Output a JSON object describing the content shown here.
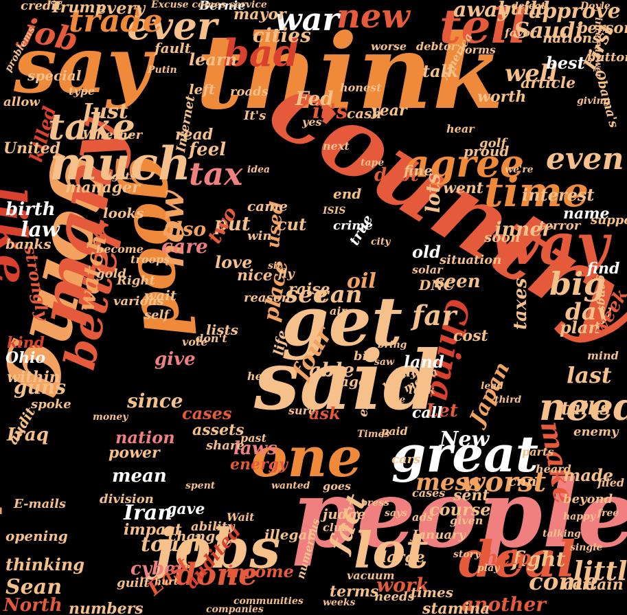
{
  "palette": {
    "background": "#000000",
    "cream": "#f6c08a",
    "light_orange": "#f3a25f",
    "orange": "#ee8a3a",
    "red_orange": "#e55a3a",
    "red": "#d9412f",
    "pink": "#f08080",
    "white": "#ffffff"
  },
  "words": [
    {
      "text": "think",
      "color": "#ee8a3a"
    },
    {
      "text": "country",
      "color": "#e55a3a"
    },
    {
      "text": "people",
      "color": "#f08080"
    },
    {
      "text": "going",
      "color": "#f3a25f"
    },
    {
      "text": "said",
      "color": "#f6c08a"
    },
    {
      "text": "say",
      "color": "#ee8a3a"
    },
    {
      "text": "many",
      "color": "#e55a3a"
    },
    {
      "text": "get",
      "color": "#f6c08a"
    },
    {
      "text": "good",
      "color": "#ee8a3a"
    },
    {
      "text": "one",
      "color": "#ee8a3a"
    },
    {
      "text": "great",
      "color": "#ffffff"
    },
    {
      "text": "way",
      "color": "#e55a3a"
    },
    {
      "text": "jobs",
      "color": "#f6c08a"
    },
    {
      "text": "lot",
      "color": "#f6c08a"
    },
    {
      "text": "deal",
      "color": "#e55a3a"
    },
    {
      "text": "much",
      "color": "#f6c08a"
    },
    {
      "text": "like",
      "color": "#d9412f"
    },
    {
      "text": "tell",
      "color": "#e55a3a"
    },
    {
      "text": "time",
      "color": "#ee8a3a"
    },
    {
      "text": "agree",
      "color": "#ee8a3a"
    },
    {
      "text": "take",
      "color": "#f6c08a"
    },
    {
      "text": "ever",
      "color": "#f6c08a"
    },
    {
      "text": "bad",
      "color": "#d9412f"
    },
    {
      "text": "new",
      "color": "#e55a3a"
    },
    {
      "text": "war",
      "color": "#ffffff"
    },
    {
      "text": "trade",
      "color": "#ee8a3a"
    },
    {
      "text": "tax",
      "color": "#f08080"
    },
    {
      "text": "need",
      "color": "#f6c08a"
    },
    {
      "text": "better",
      "color": "#e55a3a"
    },
    {
      "text": "taken",
      "color": "#f3a25f"
    },
    {
      "text": "China",
      "color": "#d9412f"
    },
    {
      "text": "now",
      "color": "#f3a25f"
    },
    {
      "text": "see",
      "color": "#f6c08a"
    },
    {
      "text": "can",
      "color": "#f6c08a"
    },
    {
      "text": "big",
      "color": "#f6c08a"
    },
    {
      "text": "done",
      "color": "#e55a3a"
    },
    {
      "text": "mess",
      "color": "#f3a25f"
    },
    {
      "text": "worst",
      "color": "#f3a25f"
    },
    {
      "text": "make",
      "color": "#e55a3a"
    },
    {
      "text": "even",
      "color": "#f6c08a"
    },
    {
      "text": "well",
      "color": "#f6c08a"
    },
    {
      "text": "cities",
      "color": "#f6c08a"
    },
    {
      "text": "it's",
      "color": "#e55a3a"
    },
    {
      "text": "also",
      "color": "#f3a25f"
    },
    {
      "text": "oil",
      "color": "#f3a25f"
    },
    {
      "text": "far",
      "color": "#f6c08a"
    },
    {
      "text": "day",
      "color": "#f6c08a"
    },
    {
      "text": "last",
      "color": "#f6c08a"
    },
    {
      "text": "talks",
      "color": "#f6c08a"
    },
    {
      "text": "little",
      "color": "#f6c08a"
    },
    {
      "text": "come",
      "color": "#f6c08a"
    },
    {
      "text": "fight",
      "color": "#f6c08a"
    },
    {
      "text": "help",
      "color": "#e55a3a"
    },
    {
      "text": "fact",
      "color": "#f6c08a"
    },
    {
      "text": "Iran",
      "color": "#ffffff"
    },
    {
      "text": "mean",
      "color": "#ffffff"
    },
    {
      "text": "New",
      "color": "#ffffff"
    },
    {
      "text": "tough",
      "color": "#f6c08a"
    },
    {
      "text": "cyber",
      "color": "#f08080"
    },
    {
      "text": "Sean",
      "color": "#f6c08a"
    },
    {
      "text": "North",
      "color": "#e55a3a"
    },
    {
      "text": "income",
      "color": "#e55a3a"
    },
    {
      "text": "four",
      "color": "#f3a25f"
    },
    {
      "text": "place",
      "color": "#f3a25f"
    },
    {
      "text": "able",
      "color": "#f6c08a"
    },
    {
      "text": "give",
      "color": "#f08080"
    },
    {
      "text": "laws",
      "color": "#f08080"
    },
    {
      "text": "energy",
      "color": "#e55a3a"
    },
    {
      "text": "nation",
      "color": "#f08080"
    },
    {
      "text": "Japan",
      "color": "#f3a25f"
    },
    {
      "text": "watch",
      "color": "#f3a25f"
    },
    {
      "text": "seen",
      "color": "#f6c08a"
    },
    {
      "text": "inner",
      "color": "#f6c08a"
    },
    {
      "text": "law",
      "color": "#ffffff"
    },
    {
      "text": "Ohio",
      "color": "#ffffff"
    },
    {
      "text": "kind",
      "color": "#d9412f"
    },
    {
      "text": "guns",
      "color": "#f6c08a"
    },
    {
      "text": "Iraq",
      "color": "#f6c08a"
    },
    {
      "text": "care",
      "color": "#f08080"
    },
    {
      "text": "love",
      "color": "#f6c08a"
    },
    {
      "text": "debt",
      "color": "#e55a3a"
    },
    {
      "text": "cut",
      "color": "#f6c08a"
    },
    {
      "text": "lots",
      "color": "#f6c08a"
    },
    {
      "text": "put",
      "color": "#f6c08a"
    },
    {
      "text": "interest",
      "color": "#f6c08a"
    },
    {
      "text": "went",
      "color": "#f6c08a"
    },
    {
      "text": "name",
      "color": "#ffffff"
    },
    {
      "text": "Just",
      "color": "#f6c08a"
    },
    {
      "text": "killed",
      "color": "#d9412f"
    },
    {
      "text": "birth",
      "color": "#ffffff"
    },
    {
      "text": "manager",
      "color": "#f6c08a"
    },
    {
      "text": "approve",
      "color": "#f6c08a"
    },
    {
      "text": "away",
      "color": "#f6c08a"
    },
    {
      "text": "build",
      "color": "#f6c08a"
    },
    {
      "text": "job",
      "color": "#e55a3a"
    },
    {
      "text": "every",
      "color": "#f6c08a"
    },
    {
      "text": "learn",
      "color": "#f6c08a"
    },
    {
      "text": "Fed",
      "color": "#f6c08a"
    },
    {
      "text": "read",
      "color": "#f6c08a"
    },
    {
      "text": "feel",
      "color": "#f6c08a"
    },
    {
      "text": "Trump",
      "color": "#f6c08a"
    },
    {
      "text": "Bernie",
      "color": "#ffffff"
    },
    {
      "text": "mayor",
      "color": "#f6c08a"
    },
    {
      "text": "person",
      "color": "#f6c08a"
    },
    {
      "text": "Saudi",
      "color": "#f6c08a"
    },
    {
      "text": "best",
      "color": "#ffffff"
    },
    {
      "text": "talk",
      "color": "#f6c08a"
    },
    {
      "text": "worth",
      "color": "#f6c08a"
    },
    {
      "text": "First",
      "color": "#f6c08a"
    },
    {
      "text": "two",
      "color": "#e55a3a"
    },
    {
      "text": "nice",
      "color": "#f6c08a"
    },
    {
      "text": "raise",
      "color": "#f6c08a"
    },
    {
      "text": "old",
      "color": "#ffffff"
    },
    {
      "text": "crime",
      "color": "#ffffff"
    },
    {
      "text": "true",
      "color": "#ffffff"
    },
    {
      "text": "find",
      "color": "#ffffff"
    },
    {
      "text": "plan",
      "color": "#f6c08a"
    },
    {
      "text": "week",
      "color": "#e55a3a"
    },
    {
      "text": "Let",
      "color": "#e55a3a"
    },
    {
      "text": "ask",
      "color": "#e55a3a"
    },
    {
      "text": "land",
      "color": "#ffffff"
    },
    {
      "text": "call",
      "color": "#ffffff"
    },
    {
      "text": "cost",
      "color": "#f6c08a"
    },
    {
      "text": "since",
      "color": "#f6c08a"
    },
    {
      "text": "cases",
      "color": "#e55a3a"
    },
    {
      "text": "assets",
      "color": "#f6c08a"
    },
    {
      "text": "gave",
      "color": "#ffffff"
    },
    {
      "text": "impact",
      "color": "#f6c08a"
    },
    {
      "text": "power",
      "color": "#f6c08a"
    },
    {
      "text": "thinking",
      "color": "#f6c08a"
    },
    {
      "text": "East",
      "color": "#e55a3a"
    },
    {
      "text": "audited",
      "color": "#d9412f"
    },
    {
      "text": "numbers",
      "color": "#f6c08a"
    },
    {
      "text": "work",
      "color": "#e55a3a"
    },
    {
      "text": "terms",
      "color": "#f6c08a"
    },
    {
      "text": "another",
      "color": "#e55a3a"
    },
    {
      "text": "certain",
      "color": "#f6c08a"
    },
    {
      "text": "times",
      "color": "#f6c08a"
    },
    {
      "text": "large",
      "color": "#f6c08a"
    },
    {
      "text": "course",
      "color": "#f6c08a"
    },
    {
      "text": "sent",
      "color": "#f6c08a"
    },
    {
      "text": "made",
      "color": "#f6c08a"
    },
    {
      "text": "beyond",
      "color": "#f6c08a"
    },
    {
      "text": "credit",
      "color": "#f6c08a"
    },
    {
      "text": "special",
      "color": "#f6c08a"
    },
    {
      "text": "United",
      "color": "#f6c08a"
    },
    {
      "text": "within",
      "color": "#f6c08a"
    },
    {
      "text": "opening",
      "color": "#f6c08a"
    },
    {
      "text": "E-mails",
      "color": "#f6c08a"
    },
    {
      "text": "nations",
      "color": "#f6c08a"
    },
    {
      "text": "strongly",
      "color": "#e55a3a"
    },
    {
      "text": "article",
      "color": "#f6c08a"
    },
    {
      "text": "cnn",
      "color": "#f6c08a"
    },
    {
      "text": "taxes",
      "color": "#f6c08a"
    },
    {
      "text": "Right",
      "color": "#f6c08a"
    },
    {
      "text": "used",
      "color": "#f3a25f"
    },
    {
      "text": "reason",
      "color": "#f6c08a"
    },
    {
      "text": "wait",
      "color": "#f6c08a"
    },
    {
      "text": "soon",
      "color": "#f6c08a"
    },
    {
      "text": "situation",
      "color": "#f6c08a"
    },
    {
      "text": "division",
      "color": "#f6c08a"
    },
    {
      "text": "share",
      "color": "#f6c08a"
    },
    {
      "text": "ago",
      "color": "#f6c08a"
    },
    {
      "text": "judge",
      "color": "#f6c08a"
    },
    {
      "text": "illegal",
      "color": "#f6c08a"
    },
    {
      "text": "change",
      "color": "#f6c08a"
    },
    {
      "text": "ability",
      "color": "#f6c08a"
    },
    {
      "text": "DNC",
      "color": "#f6c08a"
    },
    {
      "text": "solar",
      "color": "#f6c08a"
    },
    {
      "text": "golf",
      "color": "#f6c08a"
    },
    {
      "text": "fine",
      "color": "#f6c08a"
    },
    {
      "text": "proud",
      "color": "#f6c08a"
    },
    {
      "text": "looks",
      "color": "#f6c08a"
    },
    {
      "text": "came",
      "color": "#f6c08a"
    },
    {
      "text": "end",
      "color": "#f6c08a"
    },
    {
      "text": "fly",
      "color": "#f6c08a"
    },
    {
      "text": "bit",
      "color": "#f6c08a"
    },
    {
      "text": "fault",
      "color": "#f6c08a"
    },
    {
      "text": "cash",
      "color": "#f6c08a"
    },
    {
      "text": "year",
      "color": "#f6c08a"
    },
    {
      "text": "left",
      "color": "#f6c08a"
    },
    {
      "text": "roads",
      "color": "#f6c08a"
    },
    {
      "text": "Excuse comes service",
      "color": "#f6c08a"
    },
    {
      "text": "defeat",
      "color": "#f6c08a"
    },
    {
      "text": "favor",
      "color": "#f6c08a"
    },
    {
      "text": "Doyle",
      "color": "#f6c08a"
    },
    {
      "text": "interviewer",
      "color": "#f6c08a"
    },
    {
      "text": "problems",
      "color": "#f6c08a"
    },
    {
      "text": "Obama's",
      "color": "#f6c08a"
    },
    {
      "text": "button",
      "color": "#f6c08a"
    },
    {
      "text": "honest",
      "color": "#f6c08a"
    },
    {
      "text": "Internet",
      "color": "#f6c08a"
    },
    {
      "text": "idea",
      "color": "#f6c08a"
    },
    {
      "text": "we're",
      "color": "#f6c08a"
    },
    {
      "text": "terror",
      "color": "#f6c08a"
    },
    {
      "text": "support",
      "color": "#f6c08a"
    },
    {
      "text": "gangs",
      "color": "#f6c08a"
    },
    {
      "text": "mind",
      "color": "#f6c08a"
    },
    {
      "text": "enemy",
      "color": "#f6c08a"
    },
    {
      "text": "parts",
      "color": "#f6c08a"
    },
    {
      "text": "cars",
      "color": "#f6c08a"
    },
    {
      "text": "past",
      "color": "#f6c08a"
    },
    {
      "text": "luck",
      "color": "#f6c08a"
    },
    {
      "text": "badly",
      "color": "#f6c08a"
    },
    {
      "text": "heard",
      "color": "#f6c08a"
    },
    {
      "text": "filed",
      "color": "#f6c08a"
    },
    {
      "text": "ads",
      "color": "#f6c08a"
    },
    {
      "text": "given",
      "color": "#f6c08a"
    },
    {
      "text": "January",
      "color": "#f6c08a"
    },
    {
      "text": "club",
      "color": "#f6c08a"
    },
    {
      "text": "vacuum",
      "color": "#f6c08a"
    },
    {
      "text": "numerous",
      "color": "#f6c08a"
    },
    {
      "text": "needs",
      "color": "#f6c08a"
    },
    {
      "text": "stamina",
      "color": "#f6c08a"
    },
    {
      "text": "banks",
      "color": "#f6c08a"
    },
    {
      "text": "gold",
      "color": "#f6c08a"
    },
    {
      "text": "become",
      "color": "#f6c08a"
    },
    {
      "text": "troops",
      "color": "#f6c08a"
    },
    {
      "text": "various",
      "color": "#f6c08a"
    },
    {
      "text": "self",
      "color": "#f6c08a"
    },
    {
      "text": "lists",
      "color": "#f6c08a"
    },
    {
      "text": "life",
      "color": "#f6c08a"
    },
    {
      "text": "hell",
      "color": "#f6c08a"
    },
    {
      "text": "guilt",
      "color": "#f6c08a"
    },
    {
      "text": "spoke",
      "color": "#f6c08a"
    },
    {
      "text": "Whether",
      "color": "#f6c08a"
    },
    {
      "text": "yes",
      "color": "#f6c08a"
    },
    {
      "text": "next",
      "color": "#f6c08a"
    },
    {
      "text": "hear",
      "color": "#f6c08a"
    },
    {
      "text": "allow",
      "color": "#f6c08a"
    },
    {
      "text": "type",
      "color": "#f6c08a"
    },
    {
      "text": "It's",
      "color": "#f6c08a"
    },
    {
      "text": "America",
      "color": "#f6c08a"
    },
    {
      "text": "debtor",
      "color": "#f6c08a"
    },
    {
      "text": "forms",
      "color": "#f6c08a"
    },
    {
      "text": "worse",
      "color": "#f6c08a"
    },
    {
      "text": "giving",
      "color": "#f6c08a"
    },
    {
      "text": "Putin",
      "color": "#f6c08a"
    },
    {
      "text": "hurt",
      "color": "#f6c08a"
    },
    {
      "text": "win",
      "color": "#f6c08a"
    },
    {
      "text": "sure",
      "color": "#f6c08a"
    },
    {
      "text": "don't",
      "color": "#f6c08a"
    },
    {
      "text": "media",
      "color": "#f6c08a"
    },
    {
      "text": "owe",
      "color": "#f6c08a"
    },
    {
      "text": "buy",
      "color": "#f6c08a"
    },
    {
      "text": "saw",
      "color": "#f6c08a"
    },
    {
      "text": "bring",
      "color": "#f6c08a"
    },
    {
      "text": "Wait",
      "color": "#f6c08a"
    },
    {
      "text": "goes",
      "color": "#f6c08a"
    },
    {
      "text": "cases",
      "color": "#f6c08a"
    },
    {
      "text": "estate",
      "color": "#f6c08a"
    },
    {
      "text": "paid",
      "color": "#f6c08a"
    },
    {
      "text": "vote",
      "color": "#f6c08a"
    },
    {
      "text": "air",
      "color": "#f6c08a"
    },
    {
      "text": "sit",
      "color": "#f6c08a"
    },
    {
      "text": "says",
      "color": "#f6c08a"
    },
    {
      "text": "ISIS",
      "color": "#f6c08a"
    },
    {
      "text": "weeks",
      "color": "#f6c08a"
    },
    {
      "text": "companies",
      "color": "#f6c08a"
    },
    {
      "text": "communities",
      "color": "#f6c08a"
    },
    {
      "text": "audit",
      "color": "#f6c08a"
    },
    {
      "text": "free",
      "color": "#f6c08a"
    },
    {
      "text": "press",
      "color": "#f6c08a"
    },
    {
      "text": "Times",
      "color": "#f6c08a"
    },
    {
      "text": "wanted",
      "color": "#f6c08a"
    },
    {
      "text": "happy",
      "color": "#f6c08a"
    },
    {
      "text": "talking",
      "color": "#f6c08a"
    },
    {
      "text": "single",
      "color": "#f6c08a"
    },
    {
      "text": "story",
      "color": "#f6c08a"
    },
    {
      "text": "play",
      "color": "#f6c08a"
    },
    {
      "text": "third",
      "color": "#f6c08a"
    },
    {
      "text": "lead",
      "color": "#f6c08a"
    },
    {
      "text": "city",
      "color": "#f6c08a"
    },
    {
      "text": "tape",
      "color": "#f6c08a"
    },
    {
      "text": "rights",
      "color": "#f6c08a"
    },
    {
      "text": "money",
      "color": "#f6c08a"
    },
    {
      "text": "spent",
      "color": "#f6c08a"
    }
  ]
}
